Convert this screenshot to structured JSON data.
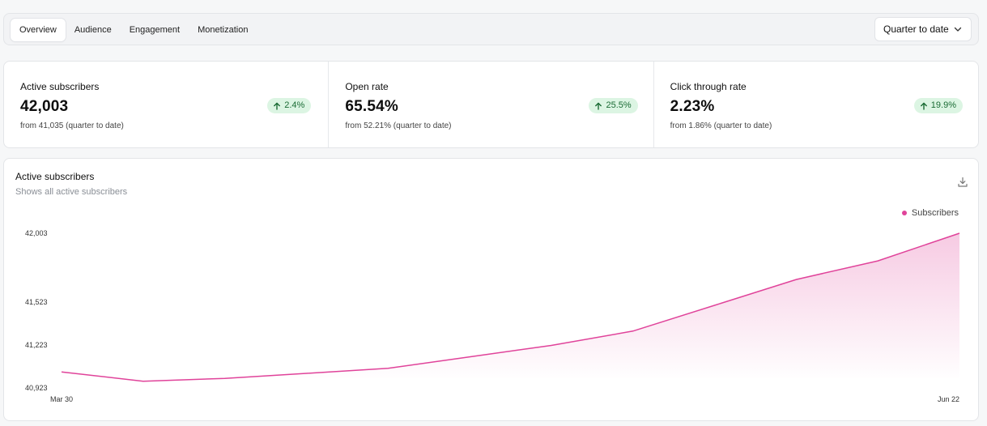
{
  "tabs": [
    {
      "label": "Overview",
      "active": true
    },
    {
      "label": "Audience",
      "active": false
    },
    {
      "label": "Engagement",
      "active": false
    },
    {
      "label": "Monetization",
      "active": false
    }
  ],
  "range_select": {
    "value": "Quarter to date",
    "icon": "chevron-down-icon"
  },
  "kpis": [
    {
      "label": "Active subscribers",
      "value": "42,003",
      "change": "2.4%",
      "from": "from 41,035 (quarter to date)"
    },
    {
      "label": "Open rate",
      "value": "65.54%",
      "change": "25.5%",
      "from": "from 52.21% (quarter to date)"
    },
    {
      "label": "Click through rate",
      "value": "2.23%",
      "change": "19.9%",
      "from": "from 1.86% (quarter to date)"
    }
  ],
  "colors": {
    "accent": "#e0439a",
    "positive_bg": "#dcf5e3",
    "positive_text": "#1a6b34"
  },
  "chart_card": {
    "title": "Active subscribers",
    "subtitle": "Shows all active subscribers",
    "download_icon": "download-icon"
  },
  "chart_data": {
    "type": "area",
    "x_labels_shown": [
      "Mar 30",
      "Jun 22"
    ],
    "yticks": [
      40923,
      41223,
      41523,
      42003
    ],
    "ytick_labels": [
      "40,923",
      "41,223",
      "41,523",
      "42,003"
    ],
    "ylim": [
      40923,
      42003
    ],
    "legend": "top-right",
    "grid": false,
    "series": [
      {
        "name": "Subscribers",
        "color": "#e0439a",
        "values": [
          41035,
          40970,
          40990,
          41025,
          41060,
          41140,
          41220,
          41320,
          41500,
          41680,
          41810,
          42003
        ]
      }
    ]
  }
}
